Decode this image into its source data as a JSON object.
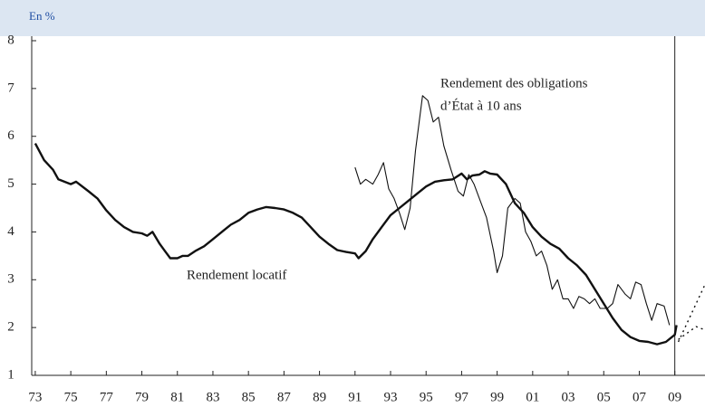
{
  "chart_data": {
    "type": "line",
    "unit_label": "En %",
    "annotations": [
      "Rendement locatif",
      "Rendement des obligations",
      "d’État à 10 ans"
    ],
    "xlim": [
      1972.8,
      2010.7
    ],
    "xticks": [
      {
        "value": 1973,
        "label": "73"
      },
      {
        "value": 1975,
        "label": "75"
      },
      {
        "value": 1977,
        "label": "77"
      },
      {
        "value": 1979,
        "label": "79"
      },
      {
        "value": 1981,
        "label": "81"
      },
      {
        "value": 1983,
        "label": "83"
      },
      {
        "value": 1985,
        "label": "85"
      },
      {
        "value": 1987,
        "label": "87"
      },
      {
        "value": 1989,
        "label": "89"
      },
      {
        "value": 1991,
        "label": "91"
      },
      {
        "value": 1993,
        "label": "93"
      },
      {
        "value": 1995,
        "label": "95"
      },
      {
        "value": 1997,
        "label": "97"
      },
      {
        "value": 1999,
        "label": "99"
      },
      {
        "value": 2001,
        "label": "01"
      },
      {
        "value": 2003,
        "label": "03"
      },
      {
        "value": 2005,
        "label": "05"
      },
      {
        "value": 2007,
        "label": "07"
      },
      {
        "value": 2009,
        "label": "09"
      }
    ],
    "ylim": [
      1,
      8
    ],
    "yticks": [
      1,
      2,
      3,
      4,
      5,
      6,
      7,
      8
    ],
    "vertical_line": 2009,
    "series": [
      {
        "color": "#111",
        "width": 2.4,
        "style": "solid",
        "x": [
          1973,
          1973.5,
          1974,
          1974.3,
          1975,
          1975.3,
          1976,
          1976.5,
          1977,
          1977.5,
          1978,
          1978.5,
          1979,
          1979.3,
          1979.6,
          1980,
          1980.3,
          1980.6,
          1981,
          1981.3,
          1981.6,
          1982,
          1982.5,
          1983,
          1983.5,
          1984,
          1984.5,
          1985,
          1985.5,
          1986,
          1986.5,
          1987,
          1987.5,
          1988,
          1988.5,
          1989,
          1989.5,
          1990,
          1990.5,
          1991,
          1991.2,
          1991.6,
          1992,
          1992.5,
          1993,
          1993.5,
          1994,
          1994.5,
          1995,
          1995.5,
          1996,
          1996.5,
          1997,
          1997.3,
          1997.6,
          1998,
          1998.3,
          1998.6,
          1999,
          1999.5,
          2000,
          2000.5,
          2001,
          2001.5,
          2002,
          2002.5,
          2003,
          2003.5,
          2004,
          2004.5,
          2005,
          2005.5,
          2006,
          2006.5,
          2007,
          2007.5,
          2008,
          2008.5,
          2009,
          2009.1
        ],
        "values": [
          5.85,
          5.5,
          5.3,
          5.1,
          5.0,
          5.05,
          4.85,
          4.7,
          4.45,
          4.25,
          4.1,
          4.0,
          3.97,
          3.92,
          4.0,
          3.75,
          3.6,
          3.45,
          3.45,
          3.5,
          3.5,
          3.6,
          3.7,
          3.85,
          4.0,
          4.15,
          4.25,
          4.4,
          4.47,
          4.52,
          4.5,
          4.47,
          4.4,
          4.3,
          4.1,
          3.9,
          3.75,
          3.62,
          3.58,
          3.55,
          3.45,
          3.6,
          3.85,
          4.1,
          4.35,
          4.5,
          4.65,
          4.8,
          4.95,
          5.05,
          5.08,
          5.1,
          5.22,
          5.1,
          5.18,
          5.2,
          5.27,
          5.22,
          5.2,
          5.0,
          4.6,
          4.4,
          4.1,
          3.9,
          3.75,
          3.65,
          3.45,
          3.3,
          3.1,
          2.8,
          2.5,
          2.2,
          1.95,
          1.8,
          1.72,
          1.7,
          1.65,
          1.7,
          1.85,
          2.05
        ]
      },
      {
        "color": "#111",
        "width": 1.1,
        "style": "solid",
        "x": [
          1991,
          1991.3,
          1991.6,
          1992,
          1992.3,
          1992.6,
          1992.9,
          1993.2,
          1993.5,
          1993.8,
          1994.1,
          1994.4,
          1994.8,
          1995.1,
          1995.4,
          1995.7,
          1996,
          1996.4,
          1996.8,
          1997.1,
          1997.4,
          1997.7,
          1998,
          1998.4,
          1998.8,
          1999,
          1999.3,
          1999.6,
          2000,
          2000.3,
          2000.6,
          2000.9,
          2001.2,
          2001.5,
          2001.8,
          2002.1,
          2002.4,
          2002.7,
          2003,
          2003.3,
          2003.6,
          2003.9,
          2004.2,
          2004.5,
          2004.8,
          2005.2,
          2005.5,
          2005.8,
          2006.2,
          2006.5,
          2006.8,
          2007.1,
          2007.4,
          2007.7,
          2008,
          2008.4,
          2008.7
        ],
        "values": [
          5.35,
          5.0,
          5.1,
          5.0,
          5.2,
          5.45,
          4.9,
          4.7,
          4.4,
          4.05,
          4.5,
          5.7,
          6.85,
          6.75,
          6.3,
          6.4,
          5.8,
          5.3,
          4.85,
          4.75,
          5.2,
          5.0,
          4.7,
          4.3,
          3.6,
          3.15,
          3.5,
          4.5,
          4.7,
          4.6,
          4.0,
          3.8,
          3.5,
          3.6,
          3.3,
          2.8,
          3.0,
          2.6,
          2.6,
          2.4,
          2.65,
          2.6,
          2.5,
          2.6,
          2.4,
          2.4,
          2.5,
          2.9,
          2.7,
          2.6,
          2.95,
          2.9,
          2.5,
          2.15,
          2.5,
          2.45,
          2.05
        ]
      },
      {
        "color": "#111",
        "width": 1.4,
        "style": "dotted",
        "x": [
          2009.2,
          2010.7
        ],
        "values": [
          1.7,
          2.9
        ]
      },
      {
        "color": "#111",
        "width": 1.4,
        "style": "dotted",
        "x": [
          2009.2,
          2010.2,
          2010.7
        ],
        "values": [
          1.75,
          2.02,
          1.95
        ]
      }
    ]
  }
}
